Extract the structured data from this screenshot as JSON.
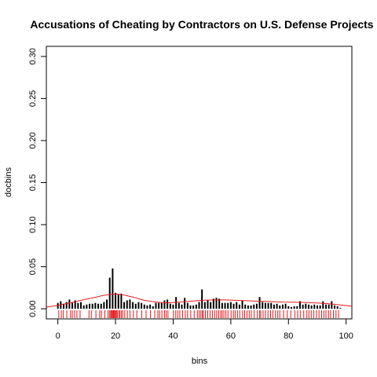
{
  "chart_data": {
    "type": "bar",
    "title": "Accusations of Cheating by Contractors on U.S. Defense Projects",
    "xlabel": "bins",
    "ylabel": "docbins",
    "xlim": [
      -4,
      102
    ],
    "ylim": [
      -0.012,
      0.312
    ],
    "xticks": [
      0,
      20,
      40,
      60,
      80,
      100
    ],
    "yticks": [
      0.0,
      0.05,
      0.1,
      0.15,
      0.2,
      0.25,
      0.3
    ],
    "ytick_labels": [
      "0.00",
      "0.05",
      "0.10",
      "0.15",
      "0.20",
      "0.25",
      "0.30"
    ],
    "grid": false,
    "legend": "none",
    "bar_color": "#000000",
    "curve_color": "#e41a1c",
    "rug_color": "#e41a1c",
    "bars": {
      "x": [
        0,
        1,
        2,
        3,
        4,
        5,
        6,
        7,
        8,
        9,
        10,
        11,
        12,
        13,
        14,
        15,
        16,
        17,
        18,
        19,
        20,
        21,
        22,
        23,
        24,
        25,
        26,
        27,
        28,
        29,
        30,
        31,
        32,
        33,
        34,
        35,
        36,
        37,
        38,
        39,
        40,
        41,
        42,
        43,
        44,
        45,
        46,
        47,
        48,
        49,
        50,
        51,
        52,
        53,
        54,
        55,
        56,
        57,
        58,
        59,
        60,
        61,
        62,
        63,
        64,
        65,
        66,
        67,
        68,
        69,
        70,
        71,
        72,
        73,
        74,
        75,
        76,
        77,
        78,
        79,
        80,
        81,
        82,
        83,
        84,
        85,
        86,
        87,
        88,
        89,
        90,
        91,
        92,
        93,
        94,
        95,
        96,
        97,
        98
      ],
      "values": [
        0.007,
        0.009,
        0.006,
        0.008,
        0.011,
        0.007,
        0.01,
        0.007,
        0.008,
        0.004,
        0.005,
        0.006,
        0.006,
        0.007,
        0.006,
        0.006,
        0.008,
        0.011,
        0.037,
        0.048,
        0.019,
        0.017,
        0.018,
        0.008,
        0.01,
        0.011,
        0.008,
        0.006,
        0.008,
        0.007,
        0.005,
        0.004,
        0.005,
        0.003,
        0.007,
        0.007,
        0.007,
        0.01,
        0.011,
        0.006,
        0.005,
        0.014,
        0.007,
        0.005,
        0.013,
        0.007,
        0.004,
        0.004,
        0.005,
        0.008,
        0.023,
        0.008,
        0.01,
        0.008,
        0.012,
        0.013,
        0.012,
        0.007,
        0.007,
        0.007,
        0.008,
        0.006,
        0.008,
        0.005,
        0.01,
        0.005,
        0.004,
        0.004,
        0.005,
        0.006,
        0.014,
        0.008,
        0.007,
        0.007,
        0.007,
        0.005,
        0.006,
        0.004,
        0.005,
        0.006,
        0.003,
        0.002,
        0.003,
        0.003,
        0.009,
        0.005,
        0.006,
        0.005,
        0.004,
        0.005,
        0.004,
        0.004,
        0.009,
        0.005,
        0.005,
        0.009,
        0.004,
        0.003,
        0.001
      ]
    },
    "density_curve": {
      "x": [
        -4,
        0,
        4,
        8,
        12,
        16,
        18,
        20,
        22,
        26,
        30,
        34,
        38,
        42,
        46,
        50,
        54,
        58,
        62,
        66,
        70,
        74,
        78,
        82,
        86,
        90,
        94,
        98,
        102
      ],
      "y": [
        0.002,
        0.004,
        0.007,
        0.01,
        0.013,
        0.016,
        0.017,
        0.0175,
        0.017,
        0.014,
        0.01,
        0.008,
        0.007,
        0.008,
        0.009,
        0.01,
        0.0105,
        0.0105,
        0.01,
        0.0095,
        0.009,
        0.0085,
        0.008,
        0.0078,
        0.0075,
        0.007,
        0.006,
        0.0045,
        0.003
      ]
    },
    "rug": [
      0.3,
      1.2,
      1.9,
      3.1,
      4.4,
      5.0,
      5.8,
      6.6,
      7.7,
      10.8,
      11.6,
      13.2,
      14.5,
      15.1,
      16.3,
      17.4,
      17.9,
      18.3,
      18.6,
      18.9,
      19.2,
      19.4,
      19.7,
      20.0,
      20.3,
      20.6,
      21.1,
      21.5,
      22.0,
      22.5,
      23.2,
      24.1,
      25.0,
      26.2,
      27.4,
      29.1,
      30.6,
      32.1,
      33.6,
      34.7,
      35.3,
      36.1,
      37.0,
      37.6,
      38.2,
      40.1,
      40.9,
      41.6,
      42.3,
      43.3,
      44.2,
      45.0,
      46.1,
      47.3,
      48.4,
      49.0,
      49.6,
      50.1,
      50.5,
      51.2,
      52.0,
      52.8,
      53.6,
      54.4,
      55.1,
      55.8,
      56.5,
      57.0,
      57.6,
      58.3,
      59.0,
      60.1,
      60.9,
      61.5,
      62.3,
      63.1,
      64.1,
      64.8,
      65.6,
      66.4,
      67.1,
      68.1,
      69.2,
      70.0,
      70.4,
      71.2,
      72.0,
      72.9,
      73.8,
      74.6,
      75.5,
      76.3,
      77.0,
      78.3,
      79.6,
      80.8,
      82.2,
      83.2,
      84.1,
      85.3,
      86.4,
      87.1,
      87.9,
      88.8,
      89.7,
      90.6,
      91.5,
      92.3,
      93.0,
      93.9,
      94.6,
      95.6,
      96.5,
      97.4
    ]
  }
}
